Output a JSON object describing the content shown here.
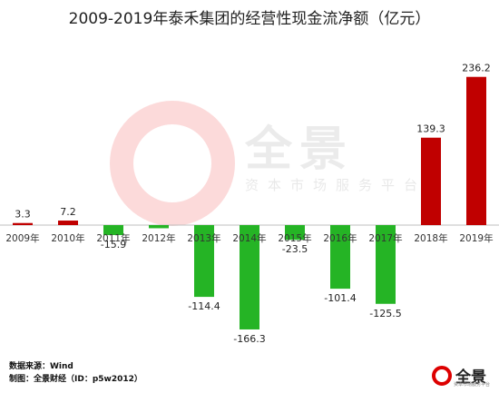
{
  "chart_data": {
    "type": "bar",
    "title": "2009-2019年泰禾集团的经营性现金流净额（亿元）",
    "categories": [
      "2009年",
      "2010年",
      "2011年",
      "2012年",
      "2013年",
      "2014年",
      "2015年",
      "2016年",
      "2017年",
      "2018年",
      "2019年"
    ],
    "values": [
      3.3,
      7.2,
      -15.9,
      -5.0,
      -114.4,
      -166.3,
      -23.5,
      -101.4,
      -125.5,
      139.3,
      236.2
    ],
    "labels": [
      "3.3",
      "7.2",
      "-15.9",
      "",
      "-114.4",
      "-166.3",
      "-23.5",
      "-101.4",
      "-125.5",
      "139.3",
      "236.2"
    ],
    "positive_color": "#c00000",
    "negative_color": "#25b425",
    "grid": false
  },
  "watermark": {
    "brand": "全景",
    "tagline": "资本市场服务平台"
  },
  "footer": {
    "source": "数据来源：Wind",
    "maker": "制图：全景财经（ID：p5w2012）"
  },
  "logo": {
    "text": "全景",
    "sub": "资本市场服务平台"
  }
}
